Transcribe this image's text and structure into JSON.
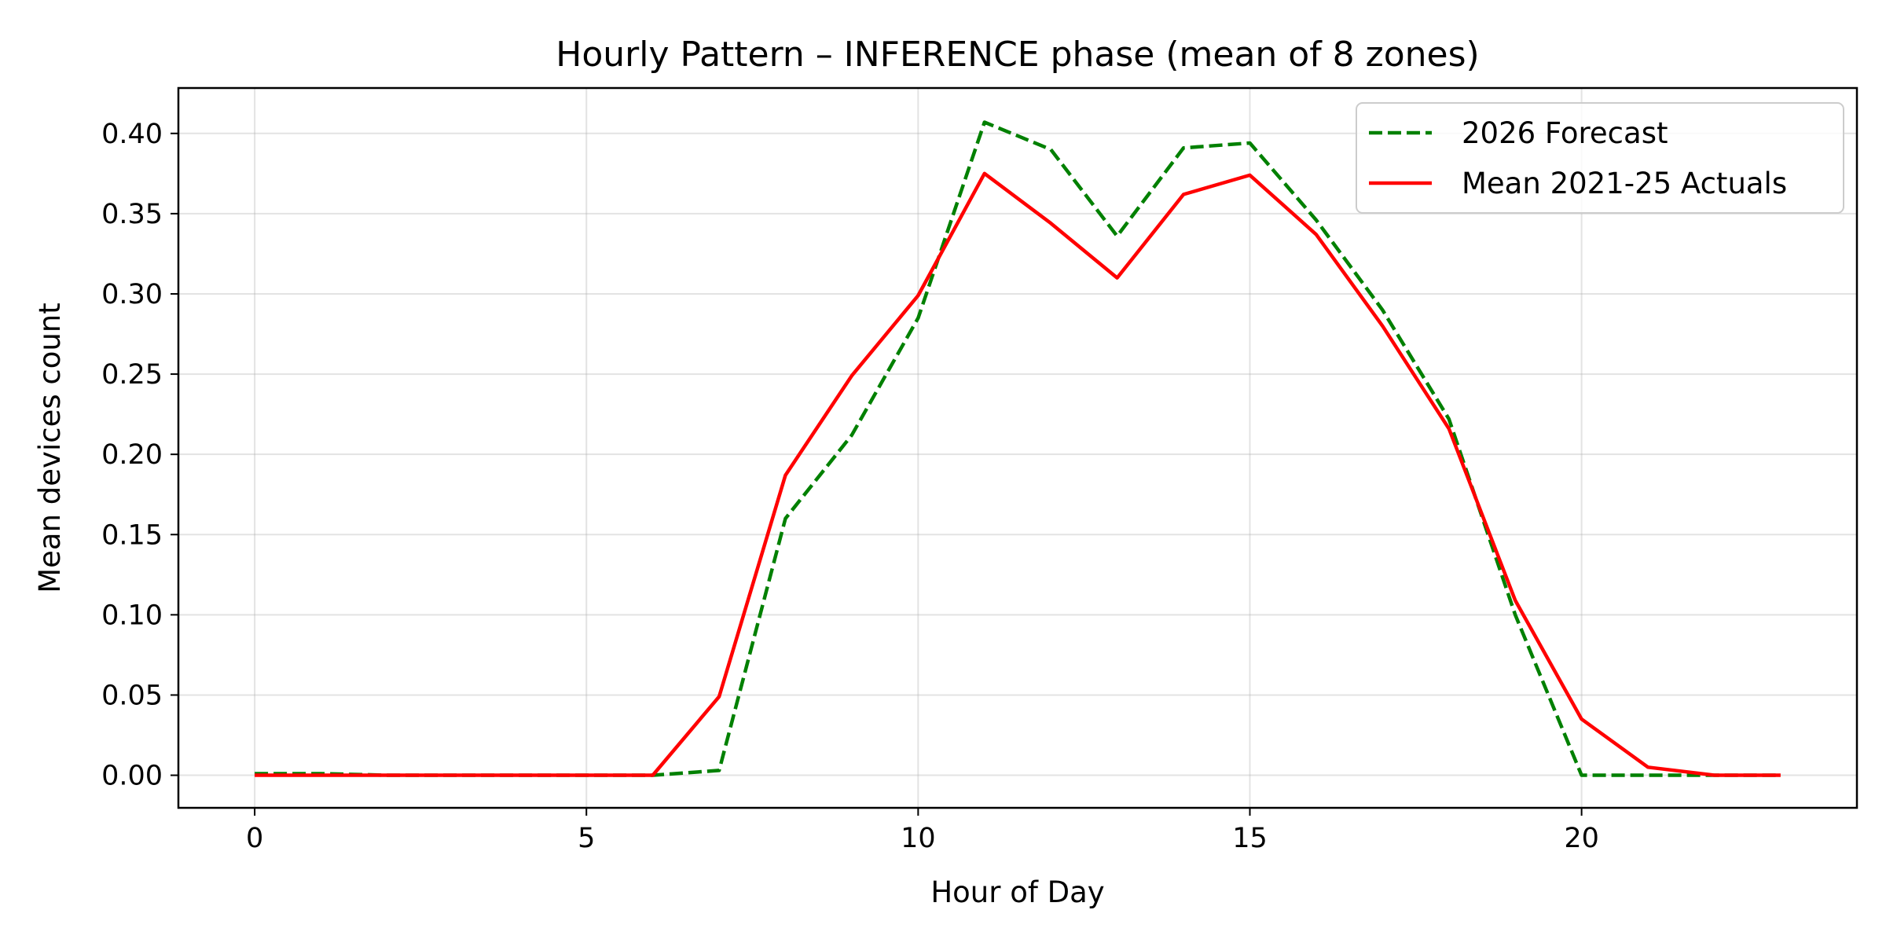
{
  "chart_data": {
    "type": "line",
    "title": "Hourly Pattern – INFERENCE phase (mean of 8 zones)",
    "xlabel": "Hour of Day",
    "ylabel": "Mean devices count",
    "xlim": [
      -1.15,
      24.15
    ],
    "ylim": [
      -0.0203,
      0.4283
    ],
    "xticks": [
      0,
      5,
      10,
      15,
      20
    ],
    "yticks": [
      0.0,
      0.05,
      0.1,
      0.15,
      0.2,
      0.25,
      0.3,
      0.35,
      0.4
    ],
    "x": [
      0,
      1,
      2,
      3,
      4,
      5,
      6,
      7,
      8,
      9,
      10,
      11,
      12,
      13,
      14,
      15,
      16,
      17,
      18,
      19,
      20,
      21,
      22,
      23
    ],
    "grid": true,
    "legend_position": "top-right",
    "series": [
      {
        "name": "2026 Forecast",
        "color": "#008000",
        "dash": "dashed",
        "values": [
          0.001,
          0.001,
          0.0,
          0.0,
          0.0,
          0.0,
          0.0,
          0.003,
          0.16,
          0.212,
          0.285,
          0.407,
          0.39,
          0.336,
          0.391,
          0.394,
          0.346,
          0.29,
          0.222,
          0.1,
          0.0,
          0.0,
          0.0,
          0.0
        ]
      },
      {
        "name": "Mean 2021-25 Actuals",
        "color": "#ff0000",
        "dash": "solid",
        "values": [
          0.0,
          0.0,
          0.0,
          0.0,
          0.0,
          0.0,
          0.0,
          0.049,
          0.187,
          0.249,
          0.299,
          0.375,
          0.344,
          0.31,
          0.362,
          0.374,
          0.337,
          0.28,
          0.216,
          0.109,
          0.035,
          0.005,
          0.0,
          0.0
        ]
      }
    ]
  }
}
